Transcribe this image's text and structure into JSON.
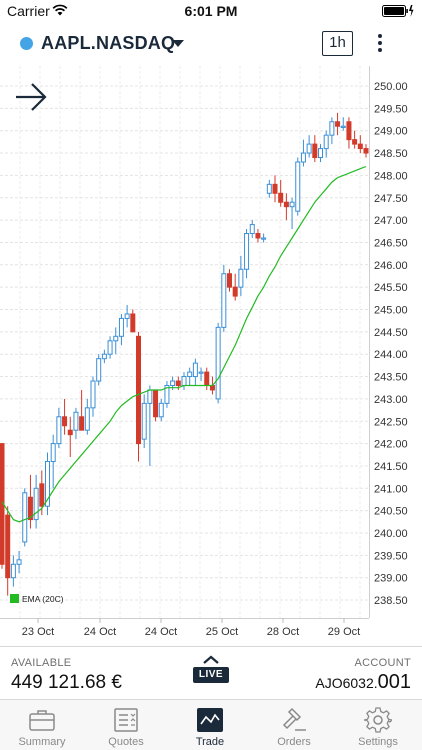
{
  "status_bar": {
    "carrier": "Carrier",
    "time": "6:01 PM"
  },
  "header": {
    "symbol": "AAPL.NASDAQ",
    "timeframe": "1h",
    "symbol_dot_color": "#45a4e6"
  },
  "chart_data": {
    "type": "candlestick",
    "title": "",
    "indicator": "EMA (20C)",
    "ylim": [
      238.25,
      250.25
    ],
    "y_ticks": [
      "250.00",
      "249.50",
      "249.00",
      "248.50",
      "248.00",
      "247.50",
      "247.00",
      "246.50",
      "246.00",
      "245.50",
      "245.00",
      "244.50",
      "244.00",
      "243.50",
      "243.00",
      "242.50",
      "242.00",
      "241.50",
      "241.00",
      "240.50",
      "240.00",
      "239.50",
      "239.00",
      "238.50"
    ],
    "x_ticks": [
      "23 Oct",
      "24 Oct",
      "24 Oct",
      "25 Oct",
      "28 Oct",
      "29 Oct"
    ],
    "up_color": "#3b8fd6",
    "down_color": "#d23a2a",
    "ema_color": "#22bb22",
    "candles": [
      {
        "o": 242.0,
        "h": 242.0,
        "l": 239.2,
        "c": 239.3
      },
      {
        "o": 240.4,
        "h": 240.6,
        "l": 238.6,
        "c": 239.0
      },
      {
        "o": 239.0,
        "h": 239.5,
        "l": 238.8,
        "c": 239.3
      },
      {
        "o": 239.3,
        "h": 239.6,
        "l": 239.1,
        "c": 239.4
      },
      {
        "o": 239.8,
        "h": 241.0,
        "l": 239.7,
        "c": 240.9
      },
      {
        "o": 240.8,
        "h": 241.3,
        "l": 240.1,
        "c": 240.3
      },
      {
        "o": 240.3,
        "h": 241.3,
        "l": 240.1,
        "c": 241.0
      },
      {
        "o": 241.1,
        "h": 241.4,
        "l": 240.4,
        "c": 240.6
      },
      {
        "o": 240.6,
        "h": 241.8,
        "l": 240.4,
        "c": 241.6
      },
      {
        "o": 241.6,
        "h": 242.2,
        "l": 241.0,
        "c": 242.0
      },
      {
        "o": 242.0,
        "h": 242.8,
        "l": 241.9,
        "c": 242.6
      },
      {
        "o": 242.6,
        "h": 243.0,
        "l": 242.2,
        "c": 242.4
      },
      {
        "o": 242.3,
        "h": 242.6,
        "l": 241.7,
        "c": 242.2
      },
      {
        "o": 242.3,
        "h": 242.8,
        "l": 242.1,
        "c": 242.7
      },
      {
        "o": 242.6,
        "h": 243.2,
        "l": 242.4,
        "c": 242.3
      },
      {
        "o": 242.3,
        "h": 243.0,
        "l": 242.2,
        "c": 242.8
      },
      {
        "o": 242.8,
        "h": 243.5,
        "l": 242.6,
        "c": 243.4
      },
      {
        "o": 243.4,
        "h": 244.0,
        "l": 243.3,
        "c": 243.9
      },
      {
        "o": 243.9,
        "h": 244.1,
        "l": 243.8,
        "c": 244.0
      },
      {
        "o": 244.0,
        "h": 244.4,
        "l": 243.9,
        "c": 244.3
      },
      {
        "o": 244.3,
        "h": 244.6,
        "l": 244.0,
        "c": 244.4
      },
      {
        "o": 244.4,
        "h": 244.9,
        "l": 244.2,
        "c": 244.8
      },
      {
        "o": 244.8,
        "h": 245.1,
        "l": 244.6,
        "c": 244.9
      },
      {
        "o": 244.9,
        "h": 245.0,
        "l": 244.5,
        "c": 244.5
      },
      {
        "o": 244.4,
        "h": 244.5,
        "l": 241.6,
        "c": 242.0
      },
      {
        "o": 242.1,
        "h": 243.1,
        "l": 241.9,
        "c": 242.9
      },
      {
        "o": 242.9,
        "h": 243.3,
        "l": 241.5,
        "c": 243.2
      },
      {
        "o": 243.2,
        "h": 243.2,
        "l": 242.5,
        "c": 242.6
      },
      {
        "o": 242.6,
        "h": 243.0,
        "l": 242.5,
        "c": 242.9
      },
      {
        "o": 242.9,
        "h": 243.4,
        "l": 242.8,
        "c": 243.3
      },
      {
        "o": 243.3,
        "h": 243.5,
        "l": 243.2,
        "c": 243.4
      },
      {
        "o": 243.4,
        "h": 243.5,
        "l": 243.2,
        "c": 243.3
      },
      {
        "o": 243.3,
        "h": 243.6,
        "l": 243.2,
        "c": 243.5
      },
      {
        "o": 243.5,
        "h": 243.7,
        "l": 243.3,
        "c": 243.6
      },
      {
        "o": 243.5,
        "h": 243.9,
        "l": 243.3,
        "c": 243.8
      },
      {
        "o": 243.6,
        "h": 243.7,
        "l": 243.4,
        "c": 243.6
      },
      {
        "o": 243.6,
        "h": 243.7,
        "l": 243.2,
        "c": 243.3
      },
      {
        "o": 243.3,
        "h": 243.5,
        "l": 243.1,
        "c": 243.2
      },
      {
        "o": 243.0,
        "h": 244.7,
        "l": 242.9,
        "c": 244.6
      },
      {
        "o": 244.6,
        "h": 246.0,
        "l": 244.5,
        "c": 245.8
      },
      {
        "o": 245.8,
        "h": 245.9,
        "l": 245.4,
        "c": 245.5
      },
      {
        "o": 245.5,
        "h": 245.8,
        "l": 245.2,
        "c": 245.3
      },
      {
        "o": 245.5,
        "h": 246.2,
        "l": 245.3,
        "c": 245.9
      },
      {
        "o": 245.9,
        "h": 246.8,
        "l": 245.7,
        "c": 246.7
      },
      {
        "o": 246.7,
        "h": 247.0,
        "l": 246.6,
        "c": 246.9
      },
      {
        "o": 246.7,
        "h": 246.8,
        "l": 246.5,
        "c": 246.6
      },
      {
        "o": 246.6,
        "h": 246.7,
        "l": 246.5,
        "c": 246.6
      },
      {
        "o": 247.6,
        "h": 247.9,
        "l": 247.5,
        "c": 247.8
      },
      {
        "o": 247.8,
        "h": 248.0,
        "l": 247.4,
        "c": 247.6
      },
      {
        "o": 247.6,
        "h": 247.9,
        "l": 247.3,
        "c": 247.4
      },
      {
        "o": 247.4,
        "h": 247.6,
        "l": 247.0,
        "c": 247.3
      },
      {
        "o": 247.3,
        "h": 247.5,
        "l": 246.8,
        "c": 247.4
      },
      {
        "o": 247.2,
        "h": 248.4,
        "l": 247.1,
        "c": 248.3
      },
      {
        "o": 248.3,
        "h": 248.8,
        "l": 248.2,
        "c": 248.5
      },
      {
        "o": 248.5,
        "h": 248.9,
        "l": 248.4,
        "c": 248.7
      },
      {
        "o": 248.7,
        "h": 248.9,
        "l": 248.3,
        "c": 248.4
      },
      {
        "o": 248.4,
        "h": 248.7,
        "l": 248.3,
        "c": 248.6
      },
      {
        "o": 248.6,
        "h": 249.0,
        "l": 248.4,
        "c": 248.9
      },
      {
        "o": 248.9,
        "h": 249.3,
        "l": 248.7,
        "c": 249.2
      },
      {
        "o": 249.2,
        "h": 249.4,
        "l": 248.9,
        "c": 249.1
      },
      {
        "o": 249.1,
        "h": 249.3,
        "l": 249.0,
        "c": 249.1
      },
      {
        "o": 249.2,
        "h": 249.3,
        "l": 248.6,
        "c": 248.8
      },
      {
        "o": 248.8,
        "h": 249.0,
        "l": 248.6,
        "c": 248.7
      },
      {
        "o": 248.7,
        "h": 248.9,
        "l": 248.5,
        "c": 248.6
      },
      {
        "o": 248.6,
        "h": 248.7,
        "l": 248.4,
        "c": 248.5
      }
    ],
    "ema": [
      240.7,
      240.5,
      240.3,
      240.25,
      240.3,
      240.35,
      240.45,
      240.55,
      240.75,
      240.95,
      241.15,
      241.3,
      241.45,
      241.6,
      241.75,
      241.9,
      242.05,
      242.2,
      242.35,
      242.5,
      242.7,
      242.85,
      242.95,
      243.05,
      243.1,
      243.15,
      243.2,
      243.2,
      243.2,
      243.25,
      243.25,
      243.25,
      243.3,
      243.3,
      243.3,
      243.3,
      243.3,
      243.3,
      243.45,
      243.7,
      243.95,
      244.2,
      244.5,
      244.8,
      245.05,
      245.3,
      245.5,
      245.75,
      245.95,
      246.2,
      246.4,
      246.6,
      246.8,
      247.0,
      247.2,
      247.4,
      247.55,
      247.7,
      247.85,
      247.95,
      248.0,
      248.05,
      248.1,
      248.15,
      248.2
    ]
  },
  "account": {
    "available_label": "AVAILABLE",
    "available_value": "449 121.68 €",
    "live_label": "LIVE",
    "account_label": "ACCOUNT",
    "account_prefix": "AJO6032.",
    "account_suffix": "001"
  },
  "tabs": [
    {
      "label": "Summary",
      "icon": "briefcase-icon"
    },
    {
      "label": "Quotes",
      "icon": "quotes-list-icon"
    },
    {
      "label": "Trade",
      "icon": "trade-chart-icon",
      "active": true
    },
    {
      "label": "Orders",
      "icon": "gavel-icon"
    },
    {
      "label": "Settings",
      "icon": "gear-icon"
    }
  ]
}
